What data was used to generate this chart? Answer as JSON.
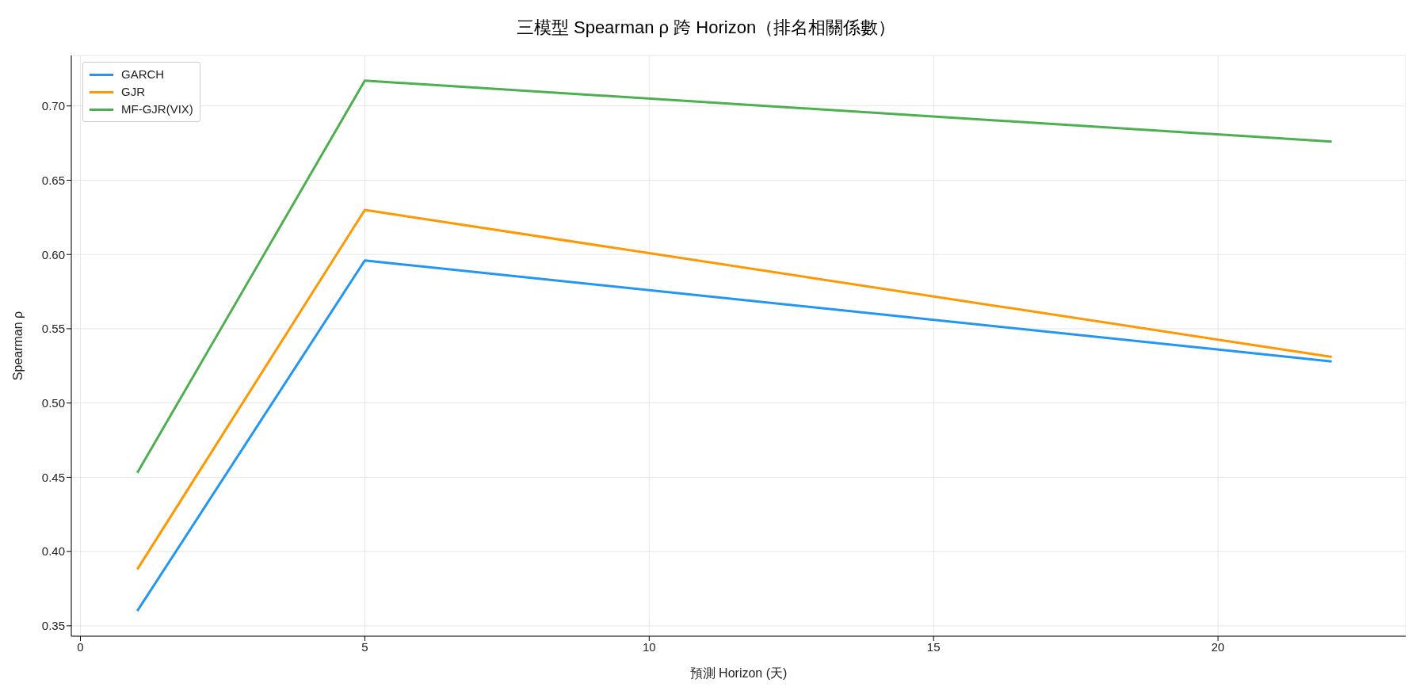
{
  "chart_data": {
    "type": "line",
    "title": "三模型 Spearman ρ 跨 Horizon（排名相關係數）",
    "xlabel": "預測 Horizon (天)",
    "ylabel": "Spearman ρ",
    "x": [
      1,
      5,
      22
    ],
    "series": [
      {
        "name": "GARCH",
        "color": "#2196f3",
        "values": [
          0.36,
          0.596,
          0.528
        ]
      },
      {
        "name": "GJR",
        "color": "#ff9800",
        "values": [
          0.388,
          0.63,
          0.531
        ]
      },
      {
        "name": "MF-GJR(VIX)",
        "color": "#4caf50",
        "values": [
          0.453,
          0.717,
          0.676
        ]
      }
    ],
    "xlim": [
      -0.16,
      23.3
    ],
    "xticks": [
      0,
      5,
      10,
      15,
      20
    ],
    "ylim": [
      0.343,
      0.734
    ],
    "yticks": [
      {
        "value": 0.35,
        "label": "0.35"
      },
      {
        "value": 0.4,
        "label": "0.40"
      },
      {
        "value": 0.45,
        "label": "0.45"
      },
      {
        "value": 0.5,
        "label": "0.50"
      },
      {
        "value": 0.55,
        "label": "0.55"
      },
      {
        "value": 0.6,
        "label": "0.60"
      },
      {
        "value": 0.65,
        "label": "0.65"
      },
      {
        "value": 0.7,
        "label": "0.70"
      }
    ],
    "grid": true,
    "legend": "top left",
    "marker": "none",
    "line_style": "solid"
  }
}
